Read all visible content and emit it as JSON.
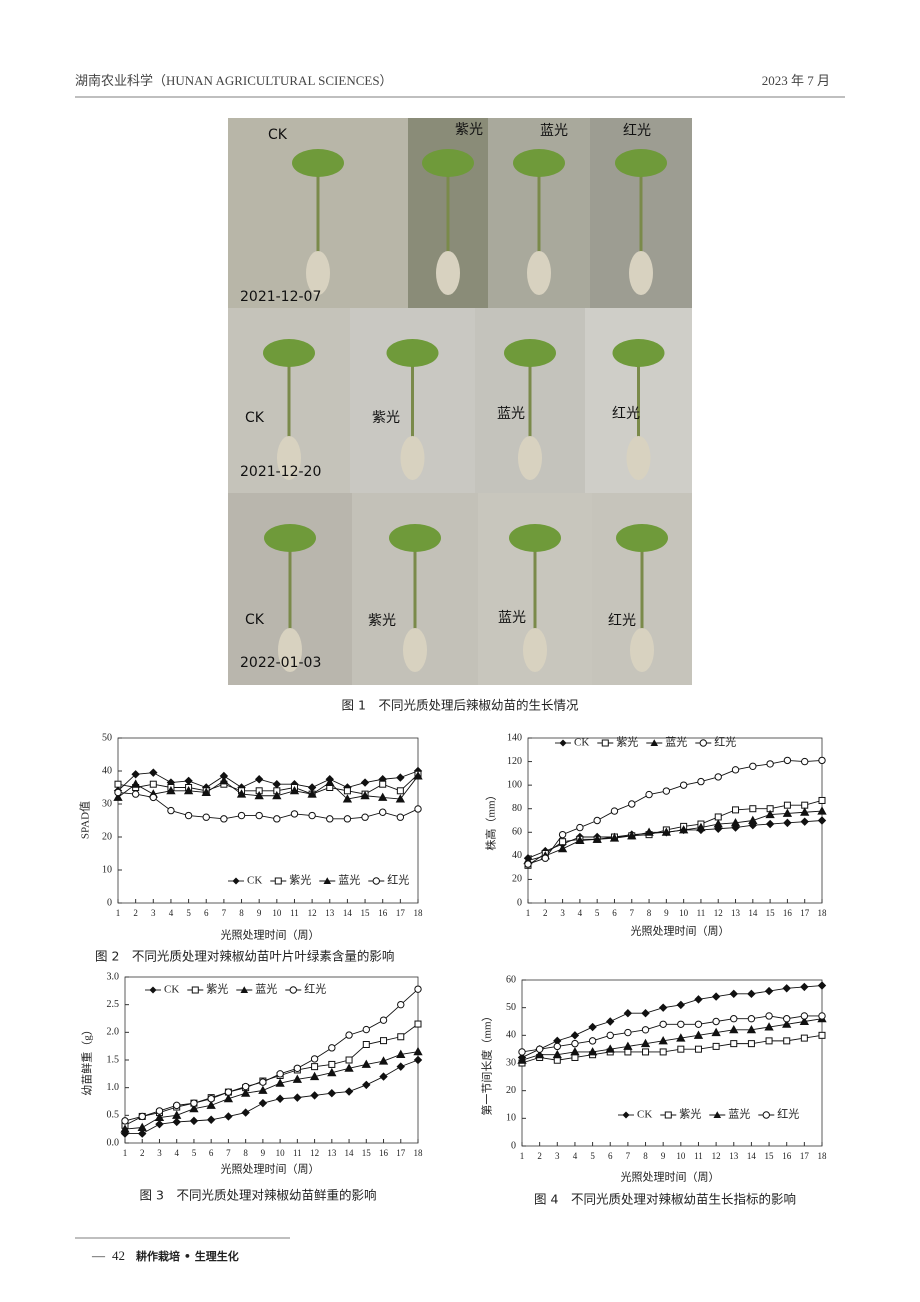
{
  "header": {
    "journal": "湖南农业科学（HUNAN AGRICULTURAL SCIENCES）",
    "date": "2023 年 7 月"
  },
  "photo": {
    "caption": "图 1　不同光质处理后辣椒幼苗的生长情况",
    "rows": [
      {
        "date": "2021-12-07",
        "labels": [
          "CK",
          "紫光",
          "蓝光",
          "红光"
        ]
      },
      {
        "date": "2021-12-20",
        "labels": [
          "CK",
          "紫光",
          "蓝光",
          "红光"
        ]
      },
      {
        "date": "2022-01-03",
        "labels": [
          "CK",
          "紫光",
          "蓝光",
          "红光"
        ]
      }
    ]
  },
  "chart_data": [
    {
      "type": "line",
      "ylabel": "SPAD值",
      "xlabel": "光照处理时间（周）",
      "caption": "图 2　不同光质处理对辣椒幼苗叶片叶绿素含量的影响",
      "x": [
        1,
        2,
        3,
        4,
        5,
        6,
        7,
        8,
        9,
        10,
        11,
        12,
        13,
        14,
        15,
        16,
        17,
        18
      ],
      "xlim": [
        1,
        18
      ],
      "xticks": [
        1,
        2,
        3,
        4,
        5,
        6,
        7,
        8,
        9,
        10,
        11,
        12,
        13,
        14,
        15,
        16,
        17,
        18
      ],
      "ylim": [
        0,
        50
      ],
      "yticks": [
        0,
        10,
        20,
        30,
        40,
        50
      ],
      "series": [
        {
          "name": "CK",
          "color": "#111",
          "marker": "diamond",
          "values": [
            34,
            39,
            39.5,
            36.5,
            37,
            35,
            38.5,
            35,
            37.5,
            36,
            36,
            35,
            37.5,
            35,
            36.5,
            37.5,
            38,
            40
          ]
        },
        {
          "name": "紫光",
          "color": "#111",
          "marker": "square",
          "values": [
            36,
            35,
            36,
            35,
            35,
            34,
            36,
            34,
            34,
            34,
            35,
            33,
            35,
            34,
            33,
            36,
            34,
            39
          ]
        },
        {
          "name": "蓝光",
          "color": "#111",
          "marker": "triangle",
          "values": [
            32,
            36,
            33,
            34,
            34,
            33.5,
            37,
            33,
            32.5,
            32.5,
            34,
            33,
            36.5,
            31.5,
            32.5,
            32,
            31.5,
            38.5
          ]
        },
        {
          "name": "红光",
          "color": "#111",
          "marker": "circle",
          "values": [
            33.5,
            33,
            32,
            28,
            26.5,
            26,
            25.5,
            26.5,
            26.5,
            25.5,
            27,
            26.5,
            25.5,
            25.5,
            26,
            27.5,
            26,
            28.5
          ]
        }
      ]
    },
    {
      "type": "line",
      "ylabel": "株高（mm）",
      "xlabel": "光照处理时间（周）",
      "x": [
        1,
        2,
        3,
        4,
        5,
        6,
        7,
        8,
        9,
        10,
        11,
        12,
        13,
        14,
        15,
        16,
        17,
        18
      ],
      "xlim": [
        1,
        18
      ],
      "xticks": [
        1,
        2,
        3,
        4,
        5,
        6,
        7,
        8,
        9,
        10,
        11,
        12,
        13,
        14,
        15,
        16,
        17,
        18
      ],
      "ylim": [
        0,
        140
      ],
      "yticks": [
        0,
        20,
        40,
        60,
        80,
        100,
        120,
        140
      ],
      "series": [
        {
          "name": "CK",
          "color": "#111",
          "marker": "diamond",
          "values": [
            38,
            44,
            50,
            56,
            56,
            56,
            58,
            59,
            60,
            62,
            62,
            63,
            64,
            66,
            67,
            68,
            69,
            70
          ]
        },
        {
          "name": "紫光",
          "color": "#111",
          "marker": "square",
          "values": [
            32,
            42,
            52,
            54,
            54,
            56,
            57,
            58,
            62,
            65,
            67,
            73,
            79,
            80,
            80,
            83,
            83,
            87
          ]
        },
        {
          "name": "蓝光",
          "color": "#111",
          "marker": "triangle",
          "values": [
            36,
            40,
            46,
            53,
            54,
            55,
            57,
            60,
            60,
            62,
            64,
            67,
            68,
            70,
            75,
            76,
            77,
            78
          ]
        },
        {
          "name": "红光",
          "color": "#111",
          "marker": "circle",
          "values": [
            33,
            38,
            58,
            64,
            70,
            78,
            84,
            92,
            95,
            100,
            103,
            107,
            113,
            116,
            118,
            121,
            120,
            121
          ]
        }
      ]
    },
    {
      "type": "line",
      "ylabel": "幼苗鲜重（g）",
      "xlabel": "光照处理时间（周）",
      "caption": "图 3　不同光质处理对辣椒幼苗鲜重的影响",
      "x": [
        1,
        2,
        3,
        4,
        5,
        6,
        7,
        8,
        9,
        10,
        11,
        12,
        13,
        14,
        15,
        16,
        17,
        18
      ],
      "xlim": [
        1,
        18
      ],
      "xticks": [
        1,
        2,
        3,
        4,
        5,
        6,
        7,
        8,
        9,
        10,
        11,
        12,
        13,
        14,
        15,
        16,
        17,
        18
      ],
      "ylim": [
        0,
        3
      ],
      "yticks": [
        {
          "value": 0,
          "label": "0.0"
        },
        0.5,
        {
          "value": 1,
          "label": "1.0"
        },
        1.5,
        {
          "value": 2,
          "label": "2.0"
        },
        2.5,
        {
          "value": 3,
          "label": "3.0"
        }
      ],
      "series": [
        {
          "name": "CK",
          "color": "#111",
          "marker": "diamond",
          "values": [
            0.17,
            0.17,
            0.34,
            0.38,
            0.4,
            0.42,
            0.48,
            0.55,
            0.72,
            0.8,
            0.82,
            0.86,
            0.9,
            0.93,
            1.05,
            1.2,
            1.38,
            1.5
          ]
        },
        {
          "name": "紫光",
          "color": "#111",
          "marker": "square",
          "values": [
            0.32,
            0.48,
            0.55,
            0.65,
            0.72,
            0.82,
            0.92,
            1.0,
            1.12,
            1.22,
            1.32,
            1.38,
            1.42,
            1.5,
            1.78,
            1.85,
            1.92,
            2.15
          ]
        },
        {
          "name": "蓝光",
          "color": "#111",
          "marker": "triangle",
          "values": [
            0.25,
            0.28,
            0.46,
            0.5,
            0.62,
            0.68,
            0.8,
            0.9,
            0.95,
            1.08,
            1.15,
            1.2,
            1.27,
            1.35,
            1.42,
            1.48,
            1.6,
            1.65
          ]
        },
        {
          "name": "红光",
          "color": "#111",
          "marker": "circle",
          "values": [
            0.4,
            0.48,
            0.58,
            0.68,
            0.72,
            0.8,
            0.92,
            1.02,
            1.1,
            1.25,
            1.35,
            1.52,
            1.72,
            1.95,
            2.05,
            2.22,
            2.5,
            2.78
          ]
        }
      ]
    },
    {
      "type": "line",
      "ylabel": "第一节间长度（mm）",
      "xlabel": "光照处理时间（周）",
      "caption": "图 4　不同光质处理对辣椒幼苗生长指标的影响",
      "x": [
        1,
        2,
        3,
        4,
        5,
        6,
        7,
        8,
        9,
        10,
        11,
        12,
        13,
        14,
        15,
        16,
        17,
        18
      ],
      "xlim": [
        1,
        18
      ],
      "xticks": [
        1,
        2,
        3,
        4,
        5,
        6,
        7,
        8,
        9,
        10,
        11,
        12,
        13,
        14,
        15,
        16,
        17,
        18
      ],
      "ylim": [
        0,
        60
      ],
      "yticks": [
        0,
        10,
        20,
        30,
        40,
        50,
        60
      ],
      "series": [
        {
          "name": "CK",
          "color": "#111",
          "marker": "diamond",
          "values": [
            32,
            35,
            38,
            40,
            43,
            45,
            48,
            48,
            50,
            51,
            53,
            54,
            55,
            55,
            56,
            57,
            57.5,
            58
          ]
        },
        {
          "name": "紫光",
          "color": "#111",
          "marker": "square",
          "values": [
            30,
            32,
            31,
            32,
            33,
            34,
            34,
            34,
            34,
            35,
            35,
            36,
            37,
            37,
            38,
            38,
            39,
            40
          ]
        },
        {
          "name": "蓝光",
          "color": "#111",
          "marker": "triangle",
          "values": [
            31,
            33,
            33,
            34,
            34,
            35,
            36,
            37,
            38,
            39,
            40,
            41,
            42,
            42,
            43,
            44,
            45,
            46
          ]
        },
        {
          "name": "红光",
          "color": "#111",
          "marker": "circle",
          "values": [
            34,
            35,
            36,
            37,
            38,
            40,
            41,
            42,
            44,
            44,
            44,
            45,
            46,
            46,
            47,
            46,
            47,
            47
          ]
        }
      ]
    }
  ],
  "footer": {
    "page": "42",
    "section": "耕作栽培 • 生理生化"
  }
}
